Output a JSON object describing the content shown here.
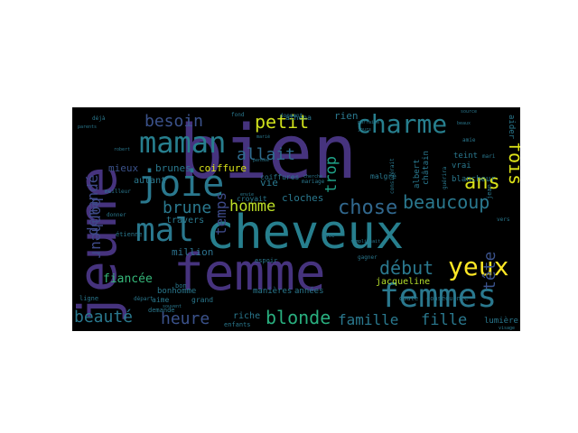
{
  "words": [
    {
      "text": "bien",
      "color": "#46337e"
    },
    {
      "text": "jeune",
      "color": "#46337e"
    },
    {
      "text": "femme",
      "color": "#46337e"
    },
    {
      "text": "cheveux",
      "color": "#277f8e"
    },
    {
      "text": "maman",
      "color": "#277f8e"
    },
    {
      "text": "charme",
      "color": "#277f8e"
    },
    {
      "text": "joie",
      "color": "#2a788e"
    },
    {
      "text": "mal",
      "color": "#2a788e"
    },
    {
      "text": "femmes",
      "color": "#2a788e"
    },
    {
      "text": "yeux",
      "color": "#fde725"
    },
    {
      "text": "ans",
      "color": "#d8e219"
    },
    {
      "text": "fois",
      "color": "#dde318"
    },
    {
      "text": "beaucoup",
      "color": "#2a788e"
    },
    {
      "text": "chose",
      "color": "#31688e"
    },
    {
      "text": "petit",
      "color": "#d0e11c"
    },
    {
      "text": "besoin",
      "color": "#3b528b"
    },
    {
      "text": "allait",
      "color": "#2f6c8e"
    },
    {
      "text": "brune",
      "color": "#2a788e"
    },
    {
      "text": "temps",
      "color": "#3e4a89"
    },
    {
      "text": "homme",
      "color": "#bddf26"
    },
    {
      "text": "trop",
      "color": "#1fa187"
    },
    {
      "text": "début",
      "color": "#2a788e"
    },
    {
      "text": "tête",
      "color": "#3b528b"
    },
    {
      "text": "blonde",
      "color": "#29af7f"
    },
    {
      "text": "fille",
      "color": "#2a788e"
    },
    {
      "text": "famille",
      "color": "#2a788e"
    },
    {
      "text": "heure",
      "color": "#3b528b"
    },
    {
      "text": "beauté",
      "color": "#2a788e"
    },
    {
      "text": "bonheur",
      "color": "#3e4a89"
    },
    {
      "text": "demandé",
      "color": "#3e4a89"
    },
    {
      "text": "fiancée",
      "color": "#35b779"
    },
    {
      "text": "million",
      "color": "#2c728e"
    },
    {
      "text": "coiffure",
      "color": "#d8e219"
    },
    {
      "text": "brunes",
      "color": "#2a788e"
    },
    {
      "text": "mieux",
      "color": "#3b528b"
    },
    {
      "text": "vie",
      "color": "#2a788e"
    },
    {
      "text": "rien",
      "color": "#2a788e"
    },
    {
      "text": "cloches",
      "color": "#2a788e"
    },
    {
      "text": "travers",
      "color": "#2a788e"
    },
    {
      "text": "bonhomme",
      "color": "#2a788e"
    },
    {
      "text": "autant",
      "color": "#2a788e"
    },
    {
      "text": "riche",
      "color": "#2a788e"
    },
    {
      "text": "manières",
      "color": "#2a788e"
    },
    {
      "text": "années",
      "color": "#2a788e"
    },
    {
      "text": "enfants",
      "color": "#2a788e"
    },
    {
      "text": "jacqueline",
      "color": "#b5de2b"
    },
    {
      "text": "lumière",
      "color": "#2a788e"
    },
    {
      "text": "blancheur",
      "color": "#2a788e"
    },
    {
      "text": "aider",
      "color": "#2a788e"
    },
    {
      "text": "teint",
      "color": "#2a788e"
    },
    {
      "text": "vrai",
      "color": "#2a788e"
    },
    {
      "text": "albert",
      "color": "#2a788e"
    },
    {
      "text": "châtain",
      "color": "#2a788e"
    },
    {
      "text": "coiffures",
      "color": "#2a788e"
    },
    {
      "text": "malgré",
      "color": "#2a788e"
    },
    {
      "text": "croyait",
      "color": "#2a788e"
    },
    {
      "text": "athéna",
      "color": "#2a788e"
    },
    {
      "text": "étienne",
      "color": "#2a788e"
    },
    {
      "text": "aime",
      "color": "#2a788e"
    },
    {
      "text": "grand",
      "color": "#2a788e"
    },
    {
      "text": "demande",
      "color": "#2a788e"
    },
    {
      "text": "espoir",
      "color": "#2a788e"
    },
    {
      "text": "doute",
      "color": "#2a788e"
    },
    {
      "text": "conséquence",
      "color": "#2a788e"
    },
    {
      "text": "côté",
      "color": "#2a788e"
    },
    {
      "text": "ligne",
      "color": "#2a788e"
    },
    {
      "text": "jean",
      "color": "#2a788e"
    },
    {
      "text": "donnent",
      "color": "#2a788e"
    },
    {
      "text": "déjà",
      "color": "#2a788e"
    },
    {
      "text": "mari",
      "color": "#2a788e"
    },
    {
      "text": "amie",
      "color": "#2a788e"
    },
    {
      "text": "meilleur",
      "color": "#2a788e"
    },
    {
      "text": "donner",
      "color": "#2a788e"
    },
    {
      "text": "départ",
      "color": "#2a788e"
    },
    {
      "text": "gagner",
      "color": "#2a788e"
    },
    {
      "text": "remplissait",
      "color": "#2a788e"
    },
    {
      "text": "mariage",
      "color": "#2a788e"
    },
    {
      "text": "jours",
      "color": "#2a788e"
    },
    {
      "text": "guérira",
      "color": "#2a788e"
    },
    {
      "text": "beaux",
      "color": "#2a788e"
    },
    {
      "text": "parfaite",
      "color": "#2a788e"
    },
    {
      "text": "parents",
      "color": "#2a788e"
    },
    {
      "text": "souvent",
      "color": "#2a788e"
    },
    {
      "text": "cherche",
      "color": "#2a788e"
    },
    {
      "text": "robert",
      "color": "#2a788e"
    },
    {
      "text": "marié",
      "color": "#2a788e"
    },
    {
      "text": "vers",
      "color": "#2a788e"
    },
    {
      "text": "bon",
      "color": "#2a788e"
    },
    {
      "text": "envie",
      "color": "#2a788e"
    },
    {
      "text": "source",
      "color": "#2a788e"
    },
    {
      "text": "visage",
      "color": "#2a788e"
    },
    {
      "text": "fond",
      "color": "#2a788e"
    },
    {
      "text": "pensée",
      "color": "#2a788e"
    },
    {
      "text": "considérait",
      "color": "#2a788e"
    }
  ]
}
